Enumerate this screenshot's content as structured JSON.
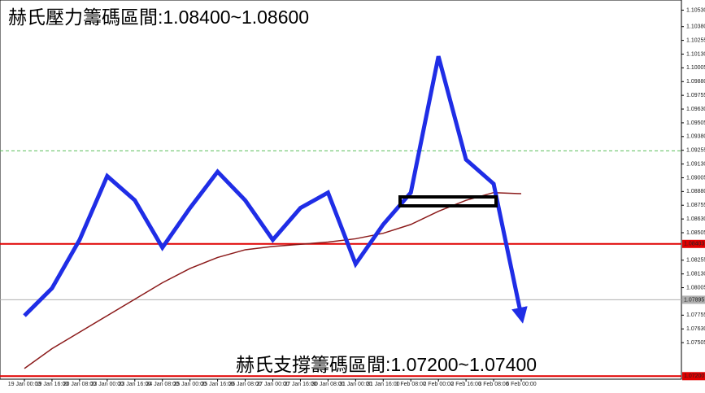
{
  "chart_data": {
    "type": "line",
    "title": "赫氏壓力籌碼區間:1.08400~1.08600",
    "subtitle": "赫氏支撐籌碼區間:1.07200~1.07400",
    "categories": [
      "19 Jan 00:00",
      "19 Jan 16:00",
      "20 Jan 08:00",
      "23 Jan 00:00",
      "23 Jan 16:00",
      "24 Jan 08:00",
      "25 Jan 00:00",
      "25 Jan 16:00",
      "26 Jan 08:00",
      "27 Jan 00:00",
      "27 Jan 16:00",
      "30 Jan 08:00",
      "31 Jan 00:00",
      "31 Jan 16:00",
      "1 Feb 08:00",
      "2 Feb 00:00",
      "2 Feb 16:00",
      "3 Feb 08:00",
      "6 Feb 00:00"
    ],
    "series": [
      {
        "color": "#1f2de6",
        "values": [
          1.0775,
          1.08,
          1.0844,
          1.0902,
          1.088,
          1.0837,
          1.0873,
          1.0906,
          1.088,
          1.0844,
          1.0873,
          1.0887,
          1.0822,
          1.0858,
          1.0887,
          1.1011,
          1.0917,
          1.0895,
          1.0775
        ]
      },
      {
        "color": "#8b1a1a",
        "values": [
          1.0727,
          1.0745,
          1.076,
          1.0775,
          1.079,
          1.0805,
          1.0818,
          1.0828,
          1.0835,
          1.0838,
          1.084,
          1.0842,
          1.0845,
          1.085,
          1.0858,
          1.087,
          1.088,
          1.0887,
          1.0886
        ]
      }
    ],
    "ylim": [
      1.0718,
      1.106
    ],
    "yticks": [
      {
        "value": 1.1053,
        "label": "1.10530"
      },
      {
        "value": 1.1038,
        "label": "1.10380"
      },
      {
        "value": 1.10255,
        "label": "1.10255"
      },
      {
        "value": 1.1013,
        "label": "1.10130"
      },
      {
        "value": 1.10005,
        "label": "1.10005"
      },
      {
        "value": 1.0988,
        "label": "1.09880"
      },
      {
        "value": 1.09755,
        "label": "1.09755"
      },
      {
        "value": 1.0963,
        "label": "1.09630"
      },
      {
        "value": 1.09505,
        "label": "1.09505"
      },
      {
        "value": 1.0938,
        "label": "1.09380"
      },
      {
        "value": 1.09255,
        "label": "1.09255"
      },
      {
        "value": 1.0913,
        "label": "1.09130"
      },
      {
        "value": 1.09005,
        "label": "1.09005"
      },
      {
        "value": 1.0888,
        "label": "1.08880"
      },
      {
        "value": 1.08755,
        "label": "1.08755"
      },
      {
        "value": 1.0863,
        "label": "1.08630"
      },
      {
        "value": 1.08505,
        "label": "1.08505"
      },
      {
        "value": 1.08255,
        "label": "1.08255"
      },
      {
        "value": 1.0813,
        "label": "1.08130"
      },
      {
        "value": 1.08005,
        "label": "1.08005"
      },
      {
        "value": 1.07755,
        "label": "1.07755"
      },
      {
        "value": 1.0763,
        "label": "1.07630"
      },
      {
        "value": 1.07505,
        "label": "1.07505"
      }
    ],
    "levels": [
      {
        "value": 1.08403,
        "label": "1.08403",
        "color": "#e00000"
      },
      {
        "value": 1.072,
        "label": "1.07200",
        "color": "#e00000"
      },
      {
        "value": 1.07895,
        "label": "1.07895",
        "color": "#b0b0b0"
      }
    ],
    "dashed_level": {
      "value": 1.0925,
      "color": "#5cbf5c"
    }
  }
}
